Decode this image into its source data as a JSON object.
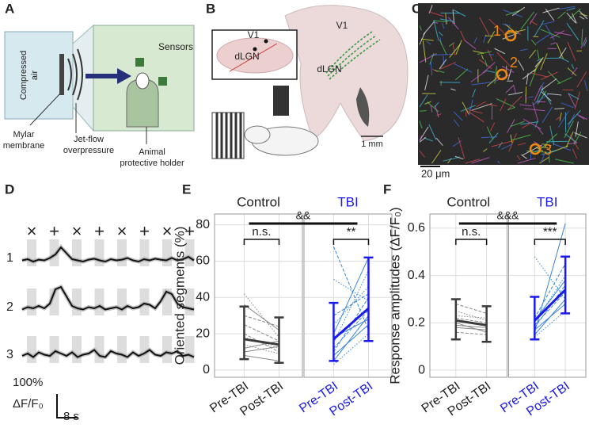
{
  "panels": {
    "A": {
      "label": "A",
      "air": [
        "Compressed",
        "air"
      ],
      "sensors": "Sensors",
      "mylar": [
        "Mylar",
        "membrane"
      ],
      "jet": [
        "Jet-flow",
        "overpressure"
      ],
      "holder": [
        "Animal",
        "protective holder"
      ]
    },
    "B": {
      "label": "B",
      "v1_inset": "V1",
      "dlgn_inset": "dLGN",
      "v1": "V1",
      "dlgn": "dLGN",
      "scale": "1 mm"
    },
    "C": {
      "label": "C",
      "rois": [
        "1",
        "2",
        "3"
      ],
      "scale": "20 μm"
    }
  },
  "chart_data": [
    {
      "type": "trace",
      "label": "D",
      "symbols": [
        "×",
        "+",
        "×",
        "+",
        "×",
        "+",
        "×",
        "+"
      ],
      "series": [
        {
          "name": "1",
          "color": "#111",
          "values": [
            5,
            10,
            0,
            8,
            5,
            15,
            30,
            60,
            35,
            10,
            5,
            0,
            8,
            12,
            5,
            0,
            10,
            5,
            8,
            15,
            5,
            0,
            10,
            5,
            12,
            8,
            5,
            15,
            5,
            10,
            20,
            5
          ]
        },
        {
          "name": "2",
          "color": "#111",
          "values": [
            5,
            15,
            10,
            20,
            10,
            30,
            90,
            100,
            60,
            20,
            10,
            5,
            15,
            10,
            20,
            5,
            10,
            15,
            5,
            20,
            10,
            15,
            30,
            25,
            10,
            40,
            80,
            70,
            30,
            15,
            10,
            5
          ]
        },
        {
          "name": "3",
          "color": "#111",
          "values": [
            10,
            20,
            5,
            25,
            15,
            10,
            30,
            20,
            10,
            25,
            5,
            15,
            20,
            35,
            10,
            5,
            30,
            20,
            15,
            5,
            25,
            10,
            20,
            35,
            15,
            10,
            25,
            20,
            30,
            10,
            15,
            5
          ]
        }
      ],
      "scale_y": "100%",
      "scale_y_unit": "ΔF/F₀",
      "scale_x": "8 s"
    },
    {
      "type": "paired",
      "label": "E",
      "ylabel": "Oriented segments (%)",
      "ylim": [
        -4,
        86
      ],
      "yticks": [
        0,
        20,
        40,
        60,
        80
      ],
      "grid": true,
      "categories": [
        "Pre-TBI",
        "Post-TBI"
      ],
      "between": "&&",
      "groups": [
        {
          "name": "Control",
          "color": "#3a3a3a",
          "text_color": "#222",
          "subject_color": "#888",
          "sig": "n.s.",
          "mean": [
            17,
            14
          ],
          "low": [
            6,
            4
          ],
          "high": [
            35,
            29
          ],
          "subjects": [
            [
              10,
              13
            ],
            [
              25,
              16
            ],
            [
              42,
              18
            ],
            [
              36,
              22
            ],
            [
              20,
              10
            ],
            [
              14,
              9
            ],
            [
              8,
              5
            ],
            [
              30,
              24
            ],
            [
              18,
              12
            ],
            [
              12,
              16
            ]
          ]
        },
        {
          "name": "TBI",
          "color": "#1a1aee",
          "text_color": "#1a1aee",
          "subject_color": "#3b86d6",
          "sig": "**",
          "mean": [
            17,
            34
          ],
          "low": [
            5,
            16
          ],
          "high": [
            37,
            62
          ],
          "subjects": [
            [
              5,
              30
            ],
            [
              10,
              40
            ],
            [
              15,
              55
            ],
            [
              20,
              62
            ],
            [
              68,
              22
            ],
            [
              50,
              38
            ],
            [
              8,
              25
            ],
            [
              12,
              33
            ],
            [
              25,
              46
            ],
            [
              18,
              28
            ],
            [
              30,
              42
            ],
            [
              3,
              20
            ]
          ]
        }
      ]
    },
    {
      "type": "paired",
      "label": "F",
      "ylabel": "Response amplitudes (ΔF/F₀)",
      "ylim": [
        -0.03,
        0.66
      ],
      "yticks": [
        0,
        0.2,
        0.4,
        0.6
      ],
      "grid": true,
      "categories": [
        "Pre-TBI",
        "Post-TBI"
      ],
      "between": "&&&",
      "groups": [
        {
          "name": "Control",
          "color": "#3a3a3a",
          "text_color": "#222",
          "subject_color": "#888",
          "sig": "n.s.",
          "mean": [
            0.21,
            0.19
          ],
          "low": [
            0.13,
            0.12
          ],
          "high": [
            0.3,
            0.27
          ],
          "subjects": [
            [
              0.18,
              0.17
            ],
            [
              0.22,
              0.2
            ],
            [
              0.25,
              0.21
            ],
            [
              0.2,
              0.16
            ],
            [
              0.16,
              0.15
            ],
            [
              0.23,
              0.22
            ],
            [
              0.19,
              0.18
            ],
            [
              0.28,
              0.24
            ]
          ]
        },
        {
          "name": "TBI",
          "color": "#1a1aee",
          "text_color": "#1a1aee",
          "subject_color": "#3b86d6",
          "sig": "***",
          "mean": [
            0.21,
            0.34
          ],
          "low": [
            0.13,
            0.24
          ],
          "high": [
            0.31,
            0.48
          ],
          "subjects": [
            [
              0.15,
              0.3
            ],
            [
              0.18,
              0.36
            ],
            [
              0.2,
              0.4
            ],
            [
              0.17,
              0.28
            ],
            [
              0.22,
              0.45
            ],
            [
              0.48,
              0.3
            ],
            [
              0.16,
              0.62
            ],
            [
              0.19,
              0.33
            ],
            [
              0.14,
              0.25
            ],
            [
              0.21,
              0.38
            ]
          ]
        }
      ]
    }
  ]
}
